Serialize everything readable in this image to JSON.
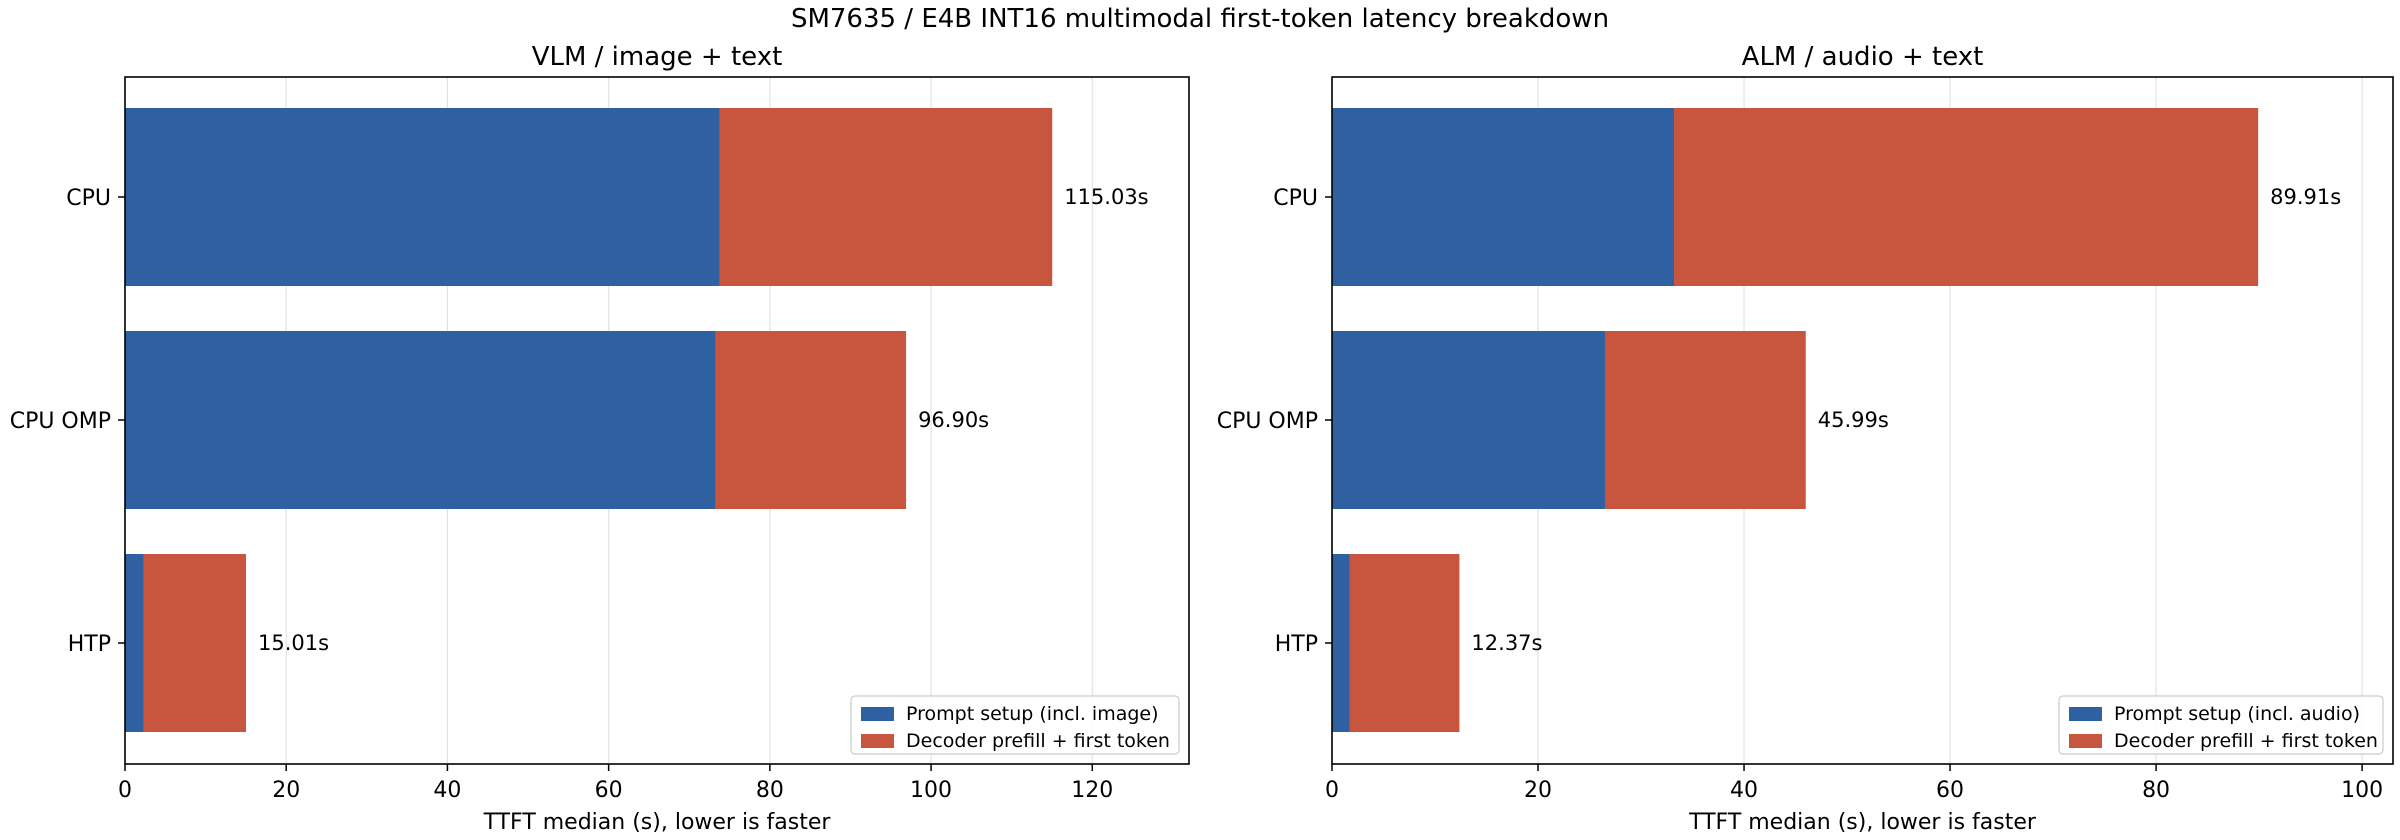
{
  "figure": {
    "title": "SM7635 / E4B INT16 multimodal first-token latency breakdown"
  },
  "colors": {
    "setup": "#2F60A1",
    "decoder": "#C8553D",
    "grid": "#e3e3e3",
    "axis": "#000000"
  },
  "chart_data": [
    {
      "type": "bar",
      "orientation": "horizontal",
      "stacked": true,
      "title": "VLM / image + text",
      "xlabel": "TTFT median (s), lower is faster",
      "ylabel": "",
      "xlim": [
        0,
        132
      ],
      "xticks": [
        0,
        20,
        40,
        60,
        80,
        100,
        120
      ],
      "grid": "x",
      "legend": "bottom-right",
      "categories": [
        "CPU",
        "CPU OMP",
        "HTP"
      ],
      "series": [
        {
          "name": "Prompt setup (incl. image)",
          "values": [
            73.8,
            73.3,
            2.3
          ]
        },
        {
          "name": "Decoder prefill + first token",
          "values": [
            41.23,
            23.6,
            12.71
          ]
        }
      ],
      "totals": [
        115.03,
        96.9,
        15.01
      ],
      "total_labels": [
        "115.03s",
        "96.90s",
        "15.01s"
      ]
    },
    {
      "type": "bar",
      "orientation": "horizontal",
      "stacked": true,
      "title": "ALM / audio + text",
      "xlabel": "TTFT median (s), lower is faster",
      "ylabel": "",
      "xlim": [
        0,
        103
      ],
      "xticks": [
        0,
        20,
        40,
        60,
        80,
        100
      ],
      "grid": "x",
      "legend": "bottom-right",
      "categories": [
        "CPU",
        "CPU OMP",
        "HTP"
      ],
      "series": [
        {
          "name": "Prompt setup (incl. audio)",
          "values": [
            33.2,
            26.5,
            1.7
          ]
        },
        {
          "name": "Decoder prefill + first token",
          "values": [
            56.71,
            19.49,
            10.67
          ]
        }
      ],
      "totals": [
        89.91,
        45.99,
        12.37
      ],
      "total_labels": [
        "89.91s",
        "45.99s",
        "12.37s"
      ]
    }
  ]
}
